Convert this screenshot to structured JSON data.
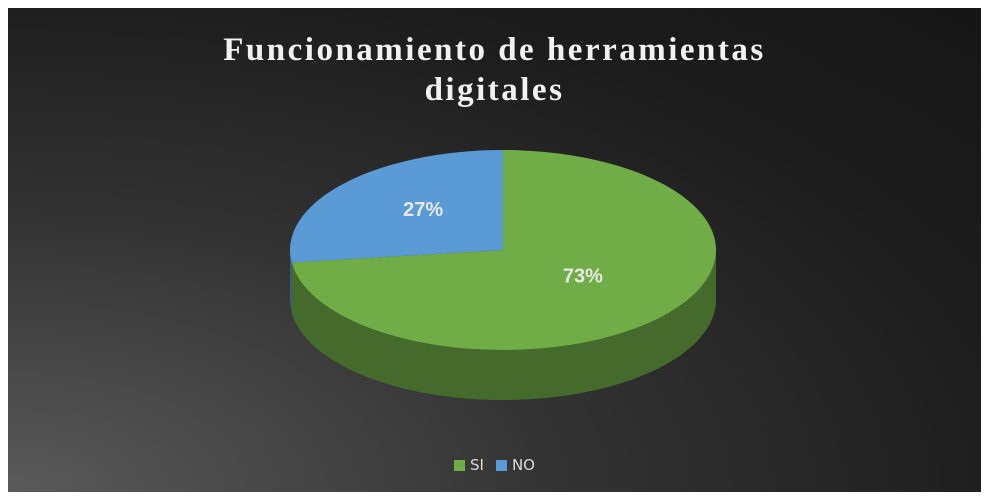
{
  "chart_data": {
    "type": "pie",
    "title": "Funcionamiento de herramientas digitales",
    "categories": [
      "SI",
      "NO"
    ],
    "values": [
      73,
      27
    ],
    "value_labels": [
      "73%",
      "27%"
    ],
    "colors": [
      "#70ad47",
      "#5b9bd5"
    ],
    "legend": "bottom"
  }
}
